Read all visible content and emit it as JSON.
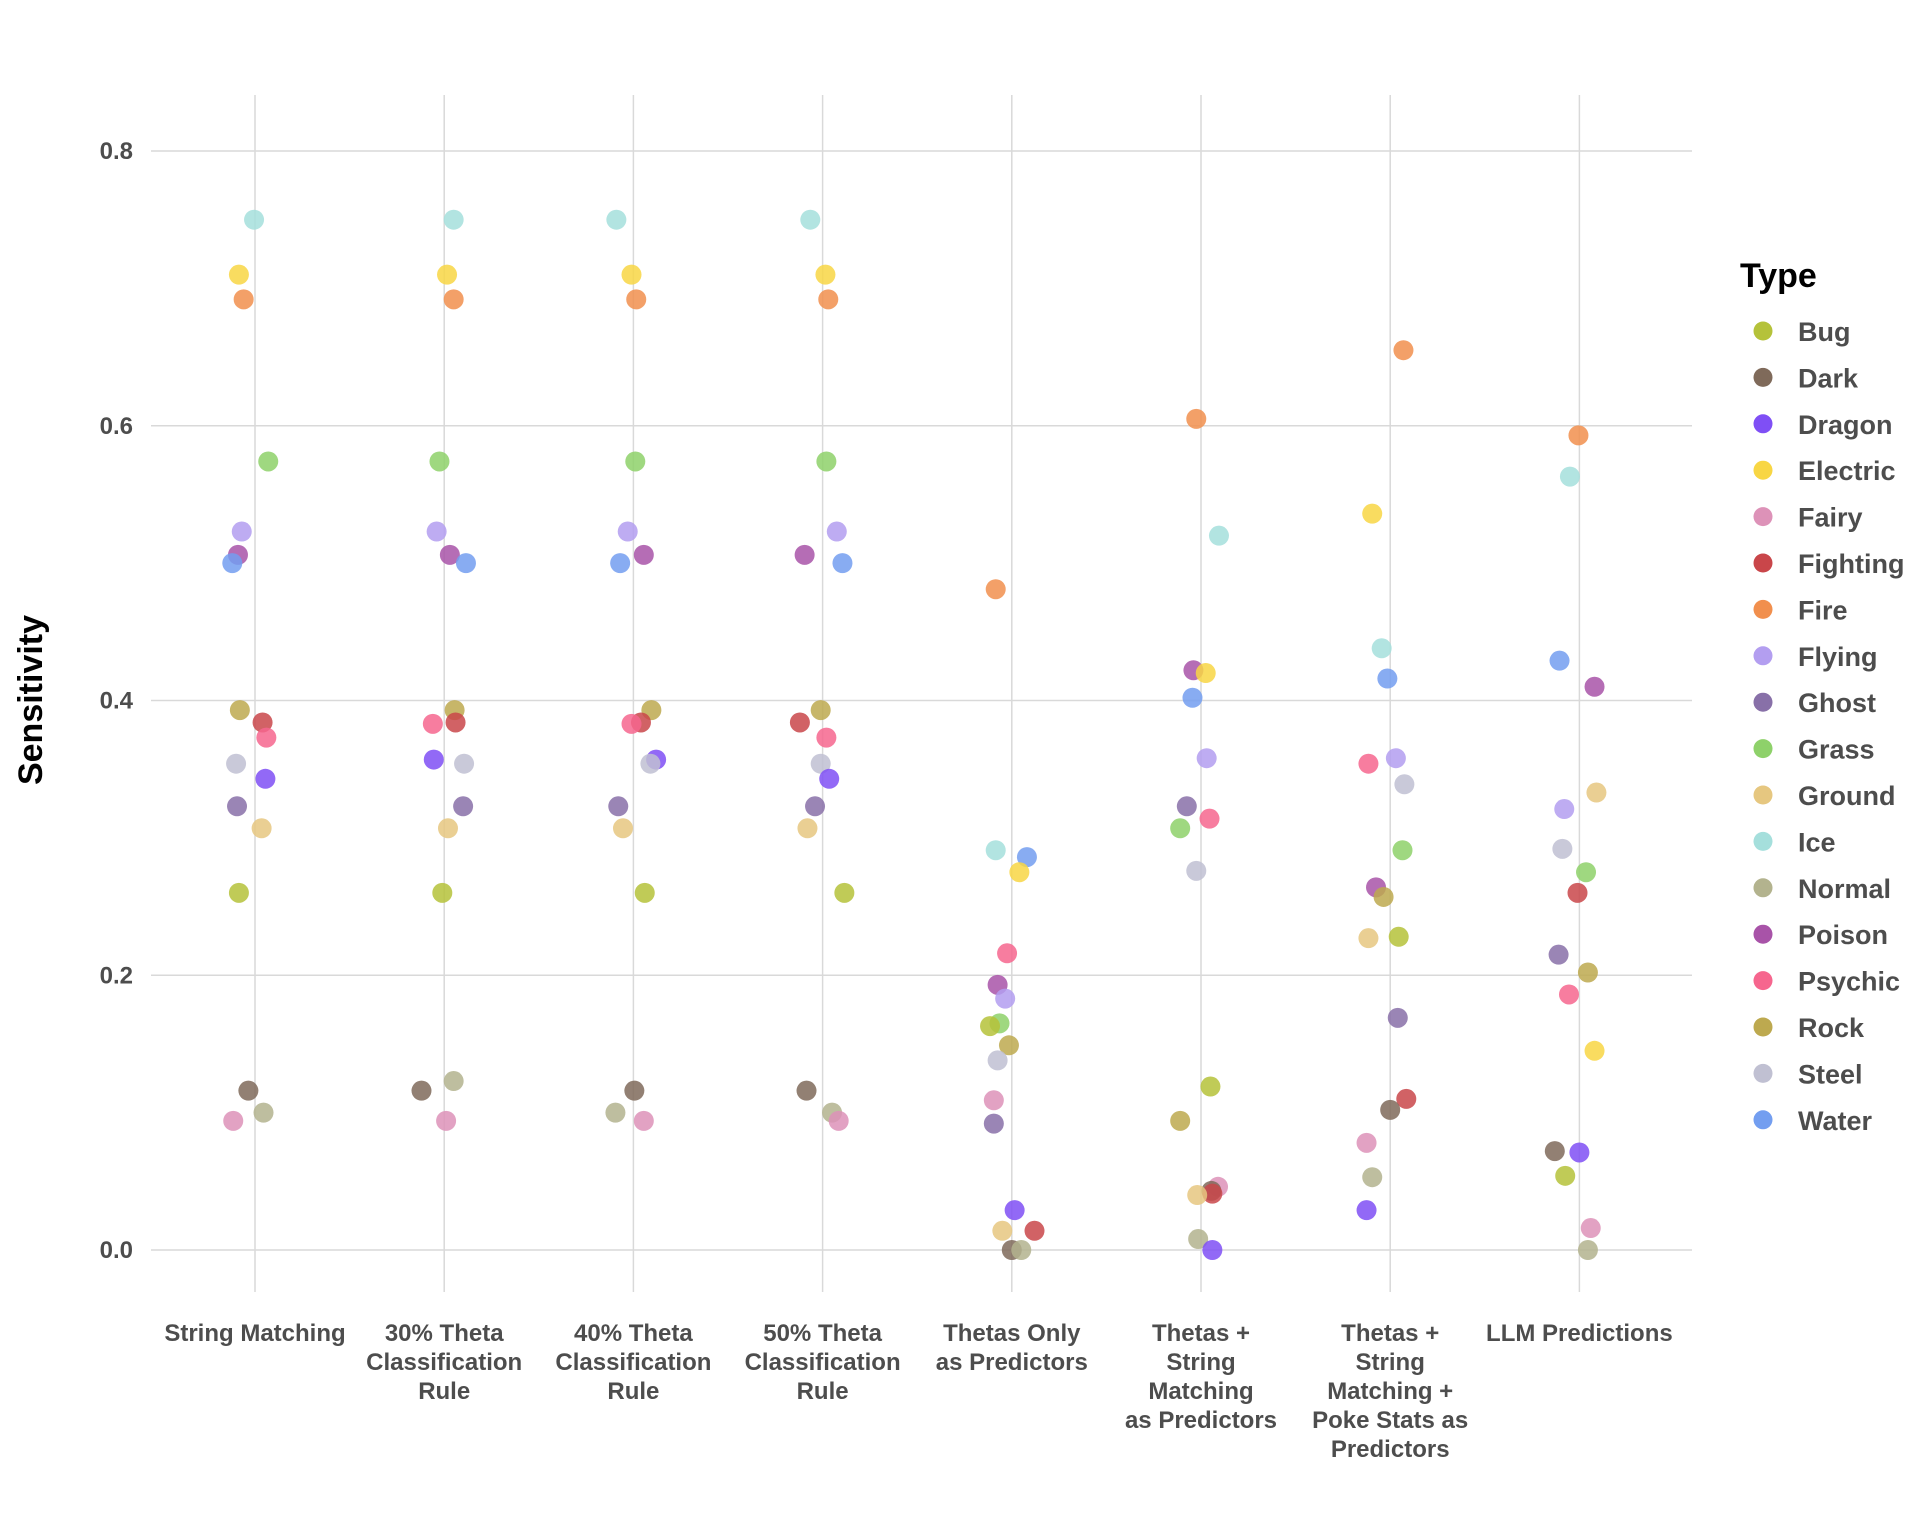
{
  "chart_data": {
    "type": "scatter",
    "title": "",
    "xlabel": "",
    "ylabel": "Sensitivity",
    "ylim": [
      -0.04,
      0.84
    ],
    "yticks": [
      "0.0",
      "0.2",
      "0.4",
      "0.6",
      "0.8"
    ],
    "ytick_values": [
      0.0,
      0.2,
      0.4,
      0.6,
      0.8
    ],
    "grid": true,
    "legend": {
      "title": "Type",
      "position": "right"
    },
    "categories": [
      [
        "String Matching"
      ],
      [
        "30% Theta",
        "Classification",
        "Rule"
      ],
      [
        "40% Theta",
        "Classification",
        "Rule"
      ],
      [
        "50% Theta",
        "Classification",
        "Rule"
      ],
      [
        "Thetas Only",
        "as Predictors"
      ],
      [
        "Thetas +",
        "String",
        "Matching",
        "as Predictors"
      ],
      [
        "Thetas +",
        "String",
        "Matching +",
        "Poke Stats as",
        "Predictors"
      ],
      [
        "LLM Predictions"
      ]
    ],
    "types": [
      {
        "name": "Bug",
        "color": "#b5c23a"
      },
      {
        "name": "Dark",
        "color": "#7f6a5a"
      },
      {
        "name": "Dragon",
        "color": "#7f4ff5"
      },
      {
        "name": "Electric",
        "color": "#f8d644"
      },
      {
        "name": "Fairy",
        "color": "#dd92b8"
      },
      {
        "name": "Fighting",
        "color": "#c9464a"
      },
      {
        "name": "Fire",
        "color": "#f18f4d"
      },
      {
        "name": "Flying",
        "color": "#b39ef0"
      },
      {
        "name": "Ghost",
        "color": "#8870a8"
      },
      {
        "name": "Grass",
        "color": "#8ed16a"
      },
      {
        "name": "Ground",
        "color": "#e6c780"
      },
      {
        "name": "Ice",
        "color": "#a5dfdc"
      },
      {
        "name": "Normal",
        "color": "#b3b38e"
      },
      {
        "name": "Poison",
        "color": "#a853a8"
      },
      {
        "name": "Psychic",
        "color": "#f6668e"
      },
      {
        "name": "Rock",
        "color": "#bda94f"
      },
      {
        "name": "Steel",
        "color": "#c0c0d2"
      },
      {
        "name": "Water",
        "color": "#739ef0"
      }
    ],
    "points": [
      [
        {
          "type": "Ice",
          "y": 0.75,
          "jitter": -0.01
        },
        {
          "type": "Electric",
          "y": 0.71,
          "jitter": -0.17
        },
        {
          "type": "Fire",
          "y": 0.692,
          "jitter": -0.12
        },
        {
          "type": "Grass",
          "y": 0.574,
          "jitter": 0.14
        },
        {
          "type": "Flying",
          "y": 0.523,
          "jitter": -0.14
        },
        {
          "type": "Poison",
          "y": 0.506,
          "jitter": -0.18
        },
        {
          "type": "Water",
          "y": 0.5,
          "jitter": -0.24
        },
        {
          "type": "Rock",
          "y": 0.393,
          "jitter": -0.16
        },
        {
          "type": "Fighting",
          "y": 0.384,
          "jitter": 0.08
        },
        {
          "type": "Psychic",
          "y": 0.373,
          "jitter": 0.12
        },
        {
          "type": "Steel",
          "y": 0.354,
          "jitter": -0.2
        },
        {
          "type": "Dragon",
          "y": 0.343,
          "jitter": 0.11
        },
        {
          "type": "Ghost",
          "y": 0.323,
          "jitter": -0.19
        },
        {
          "type": "Ground",
          "y": 0.307,
          "jitter": 0.07
        },
        {
          "type": "Bug",
          "y": 0.26,
          "jitter": -0.17
        },
        {
          "type": "Dark",
          "y": 0.116,
          "jitter": -0.07
        },
        {
          "type": "Normal",
          "y": 0.1,
          "jitter": 0.09
        },
        {
          "type": "Fairy",
          "y": 0.094,
          "jitter": -0.23
        }
      ],
      [
        {
          "type": "Ice",
          "y": 0.75,
          "jitter": 0.1
        },
        {
          "type": "Electric",
          "y": 0.71,
          "jitter": 0.03
        },
        {
          "type": "Fire",
          "y": 0.692,
          "jitter": 0.1
        },
        {
          "type": "Grass",
          "y": 0.574,
          "jitter": -0.05
        },
        {
          "type": "Flying",
          "y": 0.523,
          "jitter": -0.08
        },
        {
          "type": "Poison",
          "y": 0.506,
          "jitter": 0.06
        },
        {
          "type": "Water",
          "y": 0.5,
          "jitter": 0.23
        },
        {
          "type": "Rock",
          "y": 0.393,
          "jitter": 0.11
        },
        {
          "type": "Fighting",
          "y": 0.384,
          "jitter": 0.12
        },
        {
          "type": "Psychic",
          "y": 0.383,
          "jitter": -0.12
        },
        {
          "type": "Dragon",
          "y": 0.357,
          "jitter": -0.11
        },
        {
          "type": "Steel",
          "y": 0.354,
          "jitter": 0.21
        },
        {
          "type": "Ghost",
          "y": 0.323,
          "jitter": 0.2
        },
        {
          "type": "Ground",
          "y": 0.307,
          "jitter": 0.04
        },
        {
          "type": "Bug",
          "y": 0.26,
          "jitter": -0.02
        },
        {
          "type": "Normal",
          "y": 0.123,
          "jitter": 0.1
        },
        {
          "type": "Dark",
          "y": 0.116,
          "jitter": -0.24
        },
        {
          "type": "Fairy",
          "y": 0.094,
          "jitter": 0.02
        }
      ],
      [
        {
          "type": "Ice",
          "y": 0.75,
          "jitter": -0.18
        },
        {
          "type": "Electric",
          "y": 0.71,
          "jitter": -0.02
        },
        {
          "type": "Fire",
          "y": 0.692,
          "jitter": 0.03
        },
        {
          "type": "Grass",
          "y": 0.574,
          "jitter": 0.02
        },
        {
          "type": "Flying",
          "y": 0.523,
          "jitter": -0.06
        },
        {
          "type": "Poison",
          "y": 0.506,
          "jitter": 0.11
        },
        {
          "type": "Water",
          "y": 0.5,
          "jitter": -0.14
        },
        {
          "type": "Rock",
          "y": 0.393,
          "jitter": 0.19
        },
        {
          "type": "Fighting",
          "y": 0.384,
          "jitter": 0.08
        },
        {
          "type": "Psychic",
          "y": 0.383,
          "jitter": -0.02
        },
        {
          "type": "Dragon",
          "y": 0.357,
          "jitter": 0.24
        },
        {
          "type": "Steel",
          "y": 0.354,
          "jitter": 0.18
        },
        {
          "type": "Ghost",
          "y": 0.323,
          "jitter": -0.16
        },
        {
          "type": "Ground",
          "y": 0.307,
          "jitter": -0.11
        },
        {
          "type": "Bug",
          "y": 0.26,
          "jitter": 0.12
        },
        {
          "type": "Dark",
          "y": 0.116,
          "jitter": 0.01
        },
        {
          "type": "Normal",
          "y": 0.1,
          "jitter": -0.19
        },
        {
          "type": "Fairy",
          "y": 0.094,
          "jitter": 0.11
        }
      ],
      [
        {
          "type": "Ice",
          "y": 0.75,
          "jitter": -0.13
        },
        {
          "type": "Electric",
          "y": 0.71,
          "jitter": 0.03
        },
        {
          "type": "Fire",
          "y": 0.692,
          "jitter": 0.06
        },
        {
          "type": "Grass",
          "y": 0.574,
          "jitter": 0.04
        },
        {
          "type": "Flying",
          "y": 0.523,
          "jitter": 0.15
        },
        {
          "type": "Poison",
          "y": 0.506,
          "jitter": -0.19
        },
        {
          "type": "Water",
          "y": 0.5,
          "jitter": 0.21
        },
        {
          "type": "Rock",
          "y": 0.393,
          "jitter": -0.02
        },
        {
          "type": "Fighting",
          "y": 0.384,
          "jitter": -0.24
        },
        {
          "type": "Psychic",
          "y": 0.373,
          "jitter": 0.04
        },
        {
          "type": "Steel",
          "y": 0.354,
          "jitter": -0.02
        },
        {
          "type": "Dragon",
          "y": 0.343,
          "jitter": 0.07
        },
        {
          "type": "Ghost",
          "y": 0.323,
          "jitter": -0.08
        },
        {
          "type": "Ground",
          "y": 0.307,
          "jitter": -0.16
        },
        {
          "type": "Bug",
          "y": 0.26,
          "jitter": 0.23
        },
        {
          "type": "Dark",
          "y": 0.116,
          "jitter": -0.17
        },
        {
          "type": "Normal",
          "y": 0.1,
          "jitter": 0.1
        },
        {
          "type": "Fairy",
          "y": 0.094,
          "jitter": 0.17
        }
      ],
      [
        {
          "type": "Fire",
          "y": 0.481,
          "jitter": -0.17
        },
        {
          "type": "Ice",
          "y": 0.291,
          "jitter": -0.17
        },
        {
          "type": "Water",
          "y": 0.286,
          "jitter": 0.16
        },
        {
          "type": "Electric",
          "y": 0.275,
          "jitter": 0.08
        },
        {
          "type": "Psychic",
          "y": 0.216,
          "jitter": -0.05
        },
        {
          "type": "Poison",
          "y": 0.193,
          "jitter": -0.15
        },
        {
          "type": "Flying",
          "y": 0.183,
          "jitter": -0.07
        },
        {
          "type": "Grass",
          "y": 0.165,
          "jitter": -0.13
        },
        {
          "type": "Bug",
          "y": 0.163,
          "jitter": -0.23
        },
        {
          "type": "Rock",
          "y": 0.149,
          "jitter": -0.03
        },
        {
          "type": "Steel",
          "y": 0.138,
          "jitter": -0.15
        },
        {
          "type": "Fairy",
          "y": 0.109,
          "jitter": -0.19
        },
        {
          "type": "Ghost",
          "y": 0.092,
          "jitter": -0.19
        },
        {
          "type": "Dragon",
          "y": 0.029,
          "jitter": 0.03
        },
        {
          "type": "Ground",
          "y": 0.014,
          "jitter": -0.1
        },
        {
          "type": "Fighting",
          "y": 0.014,
          "jitter": 0.24
        },
        {
          "type": "Dark",
          "y": 0.0,
          "jitter": 0.0
        },
        {
          "type": "Normal",
          "y": 0.0,
          "jitter": 0.1
        }
      ],
      [
        {
          "type": "Fire",
          "y": 0.605,
          "jitter": -0.05
        },
        {
          "type": "Ice",
          "y": 0.52,
          "jitter": 0.19
        },
        {
          "type": "Poison",
          "y": 0.422,
          "jitter": -0.08
        },
        {
          "type": "Electric",
          "y": 0.42,
          "jitter": 0.05
        },
        {
          "type": "Water",
          "y": 0.402,
          "jitter": -0.09
        },
        {
          "type": "Flying",
          "y": 0.358,
          "jitter": 0.06
        },
        {
          "type": "Ghost",
          "y": 0.323,
          "jitter": -0.15
        },
        {
          "type": "Psychic",
          "y": 0.314,
          "jitter": 0.09
        },
        {
          "type": "Grass",
          "y": 0.307,
          "jitter": -0.22
        },
        {
          "type": "Steel",
          "y": 0.276,
          "jitter": -0.05
        },
        {
          "type": "Bug",
          "y": 0.119,
          "jitter": 0.1
        },
        {
          "type": "Rock",
          "y": 0.094,
          "jitter": -0.22
        },
        {
          "type": "Fairy",
          "y": 0.046,
          "jitter": 0.18
        },
        {
          "type": "Dark",
          "y": 0.043,
          "jitter": 0.11
        },
        {
          "type": "Fighting",
          "y": 0.041,
          "jitter": 0.12
        },
        {
          "type": "Ground",
          "y": 0.04,
          "jitter": -0.04
        },
        {
          "type": "Normal",
          "y": 0.008,
          "jitter": -0.03
        },
        {
          "type": "Dragon",
          "y": 0.0,
          "jitter": 0.12
        }
      ],
      [
        {
          "type": "Fire",
          "y": 0.655,
          "jitter": 0.14
        },
        {
          "type": "Electric",
          "y": 0.536,
          "jitter": -0.19
        },
        {
          "type": "Ice",
          "y": 0.438,
          "jitter": -0.09
        },
        {
          "type": "Water",
          "y": 0.416,
          "jitter": -0.03
        },
        {
          "type": "Flying",
          "y": 0.358,
          "jitter": 0.06
        },
        {
          "type": "Psychic",
          "y": 0.354,
          "jitter": -0.23
        },
        {
          "type": "Steel",
          "y": 0.339,
          "jitter": 0.15
        },
        {
          "type": "Grass",
          "y": 0.291,
          "jitter": 0.13
        },
        {
          "type": "Poison",
          "y": 0.264,
          "jitter": -0.15
        },
        {
          "type": "Rock",
          "y": 0.257,
          "jitter": -0.07
        },
        {
          "type": "Bug",
          "y": 0.228,
          "jitter": 0.09
        },
        {
          "type": "Ground",
          "y": 0.227,
          "jitter": -0.23
        },
        {
          "type": "Ghost",
          "y": 0.169,
          "jitter": 0.08
        },
        {
          "type": "Fighting",
          "y": 0.11,
          "jitter": 0.17
        },
        {
          "type": "Dark",
          "y": 0.102,
          "jitter": 0.0
        },
        {
          "type": "Fairy",
          "y": 0.078,
          "jitter": -0.25
        },
        {
          "type": "Normal",
          "y": 0.053,
          "jitter": -0.19
        },
        {
          "type": "Dragon",
          "y": 0.029,
          "jitter": -0.25
        }
      ],
      [
        {
          "type": "Fire",
          "y": 0.593,
          "jitter": -0.01
        },
        {
          "type": "Ice",
          "y": 0.563,
          "jitter": -0.1
        },
        {
          "type": "Water",
          "y": 0.429,
          "jitter": -0.21
        },
        {
          "type": "Poison",
          "y": 0.41,
          "jitter": 0.16
        },
        {
          "type": "Ground",
          "y": 0.333,
          "jitter": 0.18
        },
        {
          "type": "Flying",
          "y": 0.321,
          "jitter": -0.16
        },
        {
          "type": "Steel",
          "y": 0.292,
          "jitter": -0.18
        },
        {
          "type": "Grass",
          "y": 0.275,
          "jitter": 0.07
        },
        {
          "type": "Fighting",
          "y": 0.26,
          "jitter": -0.02
        },
        {
          "type": "Ghost",
          "y": 0.215,
          "jitter": -0.22
        },
        {
          "type": "Rock",
          "y": 0.202,
          "jitter": 0.09
        },
        {
          "type": "Psychic",
          "y": 0.186,
          "jitter": -0.11
        },
        {
          "type": "Electric",
          "y": 0.145,
          "jitter": 0.16
        },
        {
          "type": "Dark",
          "y": 0.072,
          "jitter": -0.26
        },
        {
          "type": "Dragon",
          "y": 0.071,
          "jitter": 0.0
        },
        {
          "type": "Bug",
          "y": 0.054,
          "jitter": -0.15
        },
        {
          "type": "Fairy",
          "y": 0.016,
          "jitter": 0.12
        },
        {
          "type": "Normal",
          "y": 0.0,
          "jitter": 0.09
        }
      ]
    ]
  }
}
